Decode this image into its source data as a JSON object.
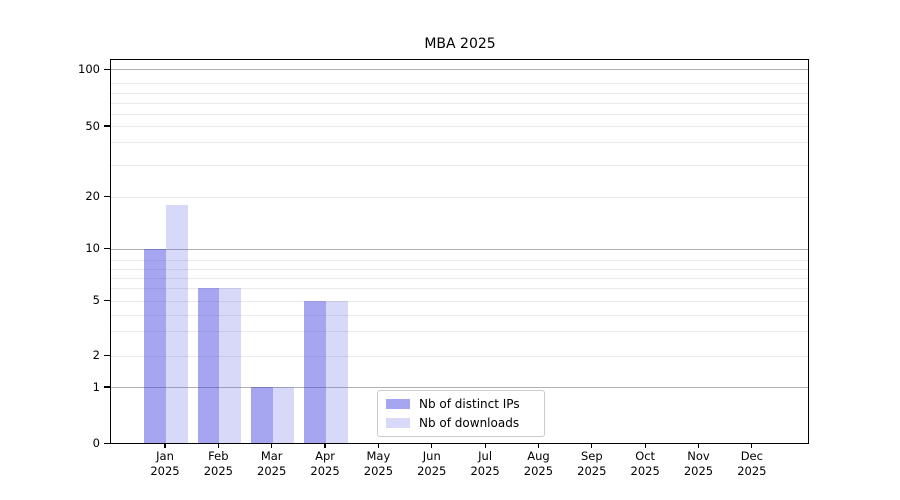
{
  "chart_data": {
    "type": "bar",
    "title": "MBA 2025",
    "categories": [
      {
        "month": "Jan",
        "year": "2025"
      },
      {
        "month": "Feb",
        "year": "2025"
      },
      {
        "month": "Mar",
        "year": "2025"
      },
      {
        "month": "Apr",
        "year": "2025"
      },
      {
        "month": "May",
        "year": "2025"
      },
      {
        "month": "Jun",
        "year": "2025"
      },
      {
        "month": "Jul",
        "year": "2025"
      },
      {
        "month": "Aug",
        "year": "2025"
      },
      {
        "month": "Sep",
        "year": "2025"
      },
      {
        "month": "Oct",
        "year": "2025"
      },
      {
        "month": "Nov",
        "year": "2025"
      },
      {
        "month": "Dec",
        "year": "2025"
      }
    ],
    "series": [
      {
        "name": "Nb of distinct IPs",
        "color": "#a5a5f0",
        "fill": "rgba(55,55,222,0.45)",
        "values": [
          10,
          6,
          1,
          5,
          0,
          0,
          0,
          0,
          0,
          0,
          0,
          0
        ]
      },
      {
        "name": "Nb of downloads",
        "color": "#d8d8f8",
        "fill": "rgba(100,100,228,0.25)",
        "values": [
          18,
          6,
          1,
          5,
          0,
          0,
          0,
          0,
          0,
          0,
          0,
          0
        ]
      }
    ],
    "y_axis": {
      "ticks": [
        100,
        50,
        20,
        10,
        5,
        2,
        1,
        0
      ],
      "scale": "log-like with linear zero",
      "ylim": [
        0,
        100
      ]
    },
    "x_axis": {
      "ticks": [
        "Jan 2025",
        "Feb 2025",
        "Mar 2025",
        "Apr 2025",
        "May 2025",
        "Jun 2025",
        "Jul 2025",
        "Aug 2025",
        "Sep 2025",
        "Oct 2025",
        "Nov 2025",
        "Dec 2025"
      ]
    },
    "grid": true,
    "legend_position": "lower-center-inside"
  },
  "colors": {
    "background": "#ffffff",
    "spine": "#000000",
    "grid_minor": "#e9e9e9",
    "grid_major": "#b0b0b0",
    "text": "#000000",
    "legend_border": "#cccccc"
  }
}
